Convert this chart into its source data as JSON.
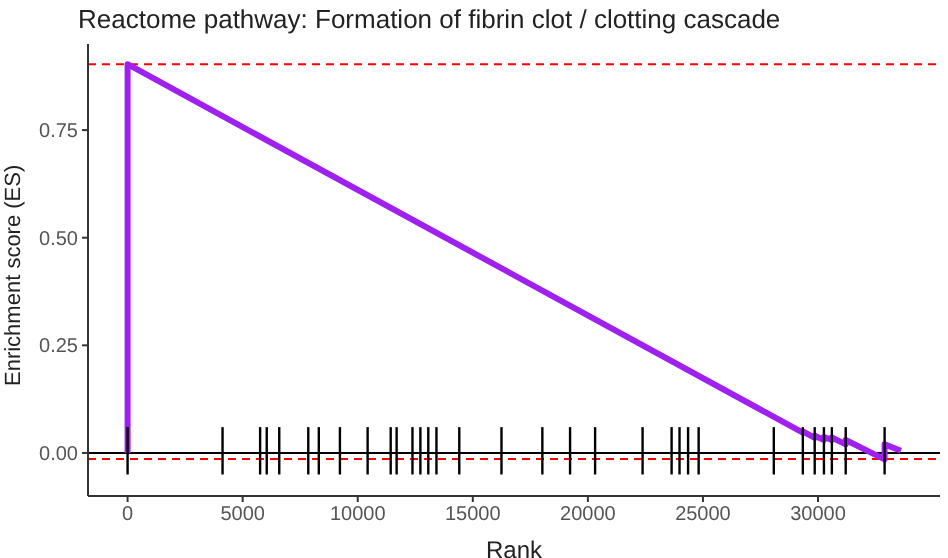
{
  "chart_data": {
    "type": "line",
    "title": "Reactome pathway: Formation of fibrin clot / clotting cascade",
    "xlabel": "Rank",
    "ylabel": "Enrichment score (ES)",
    "xlim": [
      -1720,
      35300
    ],
    "xticks": [
      0,
      5000,
      10000,
      15000,
      20000,
      25000,
      30000
    ],
    "ylim": [
      -0.1,
      0.95
    ],
    "yticks": [
      {
        "value": 0,
        "label": "0.00"
      },
      {
        "value": 0.25,
        "label": "0.25"
      },
      {
        "value": 0.5,
        "label": "0.50"
      },
      {
        "value": 0.75,
        "label": "0.75"
      }
    ],
    "grid": false,
    "legend": false,
    "line_style": "solid",
    "series": [
      {
        "marker": "none",
        "color": "#a020f0",
        "x": [
          0,
          0,
          29340,
          29340,
          29856,
          29856,
          30257,
          30257,
          30601,
          30601,
          31203,
          31203,
          32893,
          32893,
          33600
        ],
        "values": [
          0,
          0.903,
          0.047,
          0.05,
          0.035,
          0.04,
          0.03,
          0.037,
          0.03,
          0.036,
          0.02,
          0.03,
          -0.015,
          0.02,
          0.005
        ]
      },
      {
        "type": "bar",
        "color": "#000000",
        "x": [
          0,
          4126,
          5759,
          6046,
          6590,
          7851,
          8309,
          9226,
          10430,
          11432,
          11690,
          12378,
          12722,
          13066,
          13420,
          14412,
          16246,
          18022,
          19226,
          20314,
          22377,
          23638,
          23982,
          24354,
          24813,
          28079,
          29340,
          29856,
          30257,
          30601,
          31203,
          32893
        ],
        "base": [
          -0.05,
          -0.05,
          -0.05,
          -0.05,
          -0.05,
          -0.05,
          -0.05,
          -0.05,
          -0.05,
          -0.05,
          -0.05,
          -0.05,
          -0.05,
          -0.05,
          -0.05,
          -0.05,
          -0.05,
          -0.05,
          -0.05,
          -0.05,
          -0.05,
          -0.05,
          -0.05,
          -0.05,
          -0.05,
          -0.05,
          -0.05,
          -0.05,
          -0.05,
          -0.05,
          -0.05,
          -0.05
        ],
        "values": [
          0.11,
          0.11,
          0.11,
          0.11,
          0.11,
          0.11,
          0.11,
          0.11,
          0.11,
          0.11,
          0.11,
          0.11,
          0.11,
          0.11,
          0.11,
          0.11,
          0.11,
          0.11,
          0.11,
          0.11,
          0.11,
          0.11,
          0.11,
          0.11,
          0.11,
          0.11,
          0.11,
          0.11,
          0.11,
          0.11,
          0.11,
          0.11
        ]
      }
    ],
    "ref_lines": [
      {
        "axis": "y",
        "value": 0.903,
        "color": "#ff0000",
        "line_style": "dashed"
      },
      {
        "axis": "y",
        "value": 0,
        "color": "#000000",
        "line_style": "solid"
      },
      {
        "axis": "y",
        "value": -0.014,
        "color": "#ff0000",
        "line_style": "dashed"
      }
    ]
  }
}
